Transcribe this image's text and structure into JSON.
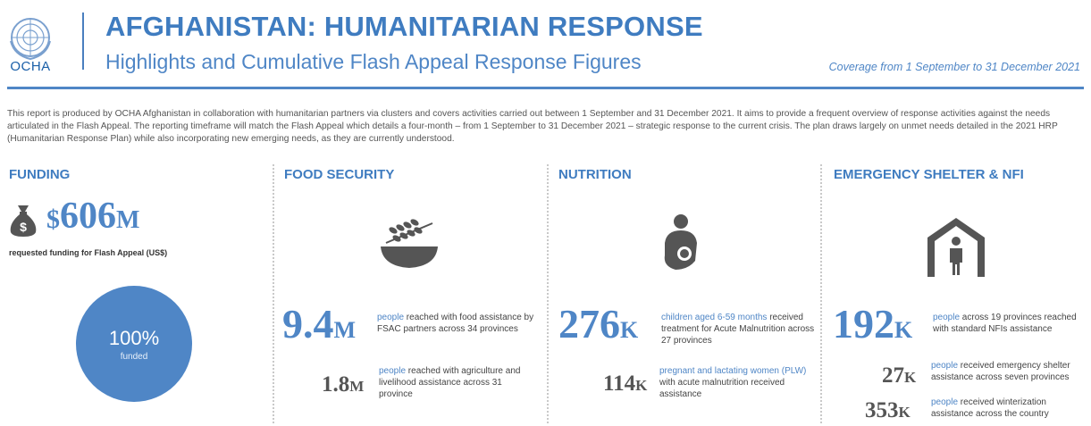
{
  "header": {
    "logo_text": "OCHA",
    "title": "AFGHANISTAN: HUMANITARIAN RESPONSE",
    "subtitle": "Highlights and Cumulative Flash Appeal Response Figures",
    "coverage": "Coverage from 1 September to 31 December 2021"
  },
  "intro": "This report is produced by OCHA Afghanistan in collaboration with humanitarian partners via clusters and covers activities carried out between 1 September and 31 December 2021. It aims to provide a frequent overview of response activities against the needs articulated in the Flash Appeal. The reporting timeframe will match the Flash Appeal which details a four-month – from 1 September to 31 December 2021 – strategic response to the current crisis. The plan draws largely on unmet needs detailed in the 2021 HRP (Humanitarian Response Plan) while also incorporating new emerging needs, as they are currently understood.",
  "colors": {
    "accent": "#4f86c6",
    "title": "#3f7cc0",
    "icon": "#555555"
  },
  "funding": {
    "heading": "FUNDING",
    "icon": "money-bag-icon",
    "currency": "$",
    "amount": "606",
    "unit": "M",
    "label": "requested funding for Flash Appeal (US$)",
    "funded_pct": "100%",
    "funded_label": "funded",
    "funded_fraction": 1.0
  },
  "food": {
    "heading": "FOOD SECURITY",
    "icon": "grain-bowl-icon",
    "main": {
      "num": "9.4",
      "unit": "M",
      "hl": "people",
      "text": " reached with food assistance by FSAC partners across 34 provinces"
    },
    "sub": {
      "num": "1.8",
      "unit": "M",
      "hl": "people",
      "text": " reached with agriculture and livelihood assistance across 31 province"
    }
  },
  "nutrition": {
    "heading": "NUTRITION",
    "icon": "breastfeeding-icon",
    "main": {
      "num": "276",
      "unit": "K",
      "hl": "children aged 6-59 months",
      "text": " received treatment for Acute Malnutrition across 27 provinces"
    },
    "sub": {
      "num": "114",
      "unit": "K",
      "hl": "pregnant and lactating women (PLW)",
      "text": " with acute malnutrition received assistance"
    }
  },
  "shelter": {
    "heading": "EMERGENCY SHELTER & NFI",
    "icon": "shelter-person-icon",
    "main": {
      "num": "192",
      "unit": "K",
      "hl": "people",
      "text": " across 19 provinces reached with standard NFIs assistance"
    },
    "sub1": {
      "num": "27",
      "unit": "K",
      "hl": "people",
      "text": " received emergency shelter assistance across seven provinces"
    },
    "sub2": {
      "num": "353",
      "unit": "K",
      "hl": "people",
      "text": " received winterization assistance across the country"
    }
  }
}
